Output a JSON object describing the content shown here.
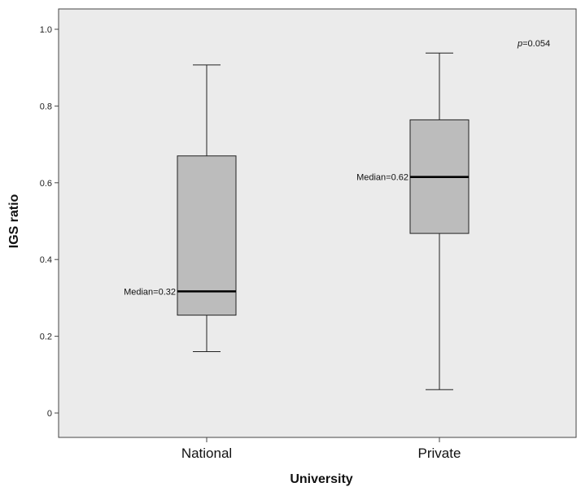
{
  "chart_data": {
    "type": "box",
    "xlabel": "University",
    "ylabel": "IGS ratio",
    "ylim": [
      -0.06,
      1.06
    ],
    "yticks": [
      0,
      0.2,
      0.4,
      0.6,
      0.8,
      1.0
    ],
    "ytick_labels": [
      "0",
      "0.2",
      "0.4",
      "0.6",
      "0.8",
      "1.0"
    ],
    "categories": [
      "National",
      "Private"
    ],
    "boxes": [
      {
        "category": "National",
        "min": 0.16,
        "q1": 0.255,
        "median": 0.317,
        "q3": 0.67,
        "max": 0.907,
        "median_label": "Median=0.32"
      },
      {
        "category": "Private",
        "min": 0.061,
        "q1": 0.468,
        "median": 0.615,
        "q3": 0.764,
        "max": 0.938,
        "median_label": "Median=0.62"
      }
    ],
    "annotation": {
      "italic": "p",
      "text": "=0.054"
    },
    "grid": false,
    "background": "#ebebeb",
    "box_fill": "#bcbcbc"
  }
}
